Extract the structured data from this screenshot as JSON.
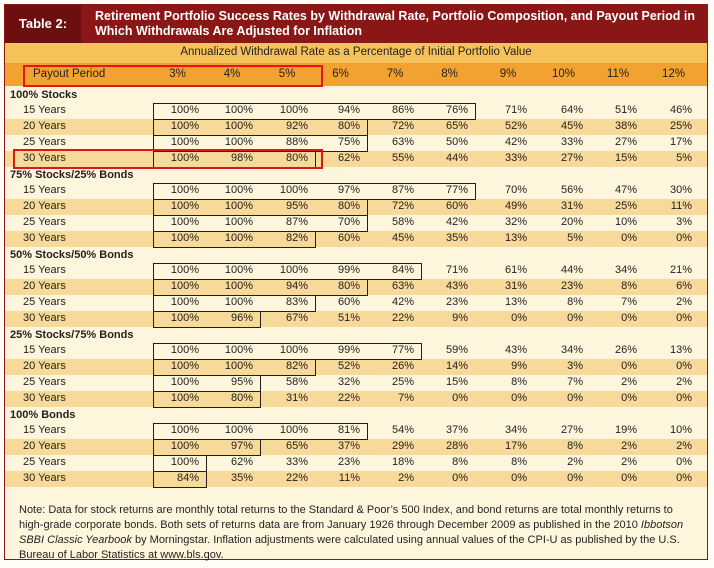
{
  "header": {
    "table_label": "Table 2:",
    "title": "Retirement Portfolio Success Rates by Withdrawal Rate, Portfolio Composition, and Payout Period in Which Withdrawals Are Adjusted for Inflation",
    "subheader": "Annualized Withdrawal Rate as a Percentage of Initial Portfolio Value"
  },
  "columns": [
    "Payout Period",
    "3%",
    "4%",
    "5%",
    "6%",
    "7%",
    "8%",
    "9%",
    "10%",
    "11%",
    "12%"
  ],
  "sections": [
    {
      "name": "100% Stocks",
      "rows": [
        {
          "period": "15 Years",
          "values": [
            "100%",
            "100%",
            "100%",
            "94%",
            "86%",
            "76%",
            "71%",
            "64%",
            "51%",
            "46%"
          ]
        },
        {
          "period": "20 Years",
          "values": [
            "100%",
            "100%",
            "92%",
            "80%",
            "72%",
            "65%",
            "52%",
            "45%",
            "38%",
            "25%"
          ]
        },
        {
          "period": "25 Years",
          "values": [
            "100%",
            "100%",
            "88%",
            "75%",
            "63%",
            "50%",
            "42%",
            "33%",
            "27%",
            "17%"
          ]
        },
        {
          "period": "30 Years",
          "values": [
            "100%",
            "98%",
            "80%",
            "62%",
            "55%",
            "44%",
            "33%",
            "27%",
            "15%",
            "5%"
          ]
        }
      ]
    },
    {
      "name": "75% Stocks/25% Bonds",
      "rows": [
        {
          "period": "15 Years",
          "values": [
            "100%",
            "100%",
            "100%",
            "97%",
            "87%",
            "77%",
            "70%",
            "56%",
            "47%",
            "30%"
          ]
        },
        {
          "period": "20 Years",
          "values": [
            "100%",
            "100%",
            "95%",
            "80%",
            "72%",
            "60%",
            "49%",
            "31%",
            "25%",
            "11%"
          ]
        },
        {
          "period": "25 Years",
          "values": [
            "100%",
            "100%",
            "87%",
            "70%",
            "58%",
            "42%",
            "32%",
            "20%",
            "10%",
            "3%"
          ]
        },
        {
          "period": "30 Years",
          "values": [
            "100%",
            "100%",
            "82%",
            "60%",
            "45%",
            "35%",
            "13%",
            "5%",
            "0%",
            "0%"
          ]
        }
      ]
    },
    {
      "name": "50% Stocks/50% Bonds",
      "rows": [
        {
          "period": "15 Years",
          "values": [
            "100%",
            "100%",
            "100%",
            "99%",
            "84%",
            "71%",
            "61%",
            "44%",
            "34%",
            "21%"
          ]
        },
        {
          "period": "20 Years",
          "values": [
            "100%",
            "100%",
            "94%",
            "80%",
            "63%",
            "43%",
            "31%",
            "23%",
            "8%",
            "6%"
          ]
        },
        {
          "period": "25 Years",
          "values": [
            "100%",
            "100%",
            "83%",
            "60%",
            "42%",
            "23%",
            "13%",
            "8%",
            "7%",
            "2%"
          ]
        },
        {
          "period": "30 Years",
          "values": [
            "100%",
            "96%",
            "67%",
            "51%",
            "22%",
            "9%",
            "0%",
            "0%",
            "0%",
            "0%"
          ]
        }
      ]
    },
    {
      "name": "25% Stocks/75% Bonds",
      "rows": [
        {
          "period": "15 Years",
          "values": [
            "100%",
            "100%",
            "100%",
            "99%",
            "77%",
            "59%",
            "43%",
            "34%",
            "26%",
            "13%"
          ]
        },
        {
          "period": "20 Years",
          "values": [
            "100%",
            "100%",
            "82%",
            "52%",
            "26%",
            "14%",
            "9%",
            "3%",
            "0%",
            "0%"
          ]
        },
        {
          "period": "25 Years",
          "values": [
            "100%",
            "95%",
            "58%",
            "32%",
            "25%",
            "15%",
            "8%",
            "7%",
            "2%",
            "2%"
          ]
        },
        {
          "period": "30 Years",
          "values": [
            "100%",
            "80%",
            "31%",
            "22%",
            "7%",
            "0%",
            "0%",
            "0%",
            "0%",
            "0%"
          ]
        }
      ]
    },
    {
      "name": "100% Bonds",
      "rows": [
        {
          "period": "15 Years",
          "values": [
            "100%",
            "100%",
            "100%",
            "81%",
            "54%",
            "37%",
            "34%",
            "27%",
            "19%",
            "10%"
          ]
        },
        {
          "period": "20 Years",
          "values": [
            "100%",
            "97%",
            "65%",
            "37%",
            "29%",
            "28%",
            "17%",
            "8%",
            "2%",
            "2%"
          ]
        },
        {
          "period": "25 Years",
          "values": [
            "100%",
            "62%",
            "33%",
            "23%",
            "18%",
            "8%",
            "8%",
            "2%",
            "2%",
            "0%"
          ]
        },
        {
          "period": "30 Years",
          "values": [
            "84%",
            "35%",
            "22%",
            "11%",
            "2%",
            "0%",
            "0%",
            "0%",
            "0%",
            "0%"
          ]
        }
      ]
    }
  ],
  "note_parts": {
    "a": "Note: Data for stock returns are monthly total returns to the Standard & Poor’s 500 Index, and bond returns are total monthly returns to high-grade corporate bonds. Both sets of returns data are from January 1926 through December 2009 as published in the 2010 ",
    "b": "Ibbotson SBBI Classic Yearbook",
    "c": " by Morningstar. Inflation adjustments were calculated using annual values of the CPI-U as published by the U.S. Bureau of Labor Statistics at www.bls.gov."
  },
  "colors": {
    "header": "#8b1616",
    "gold": "#f2a230",
    "highlight": "#e4141b"
  }
}
